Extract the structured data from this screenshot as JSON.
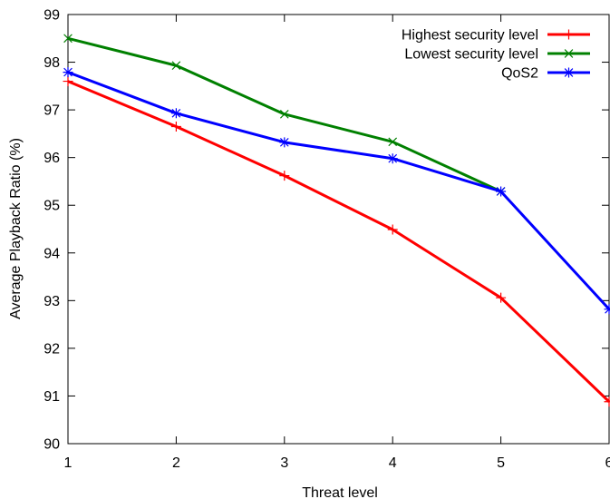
{
  "chart_data": {
    "type": "line",
    "xlabel": "Threat level",
    "ylabel": "Average Playback Ratio (%)",
    "xlim": [
      1,
      6
    ],
    "ylim": [
      90,
      99
    ],
    "xticks": [
      "1",
      "2",
      "3",
      "4",
      "5",
      "6"
    ],
    "yticks": [
      "90",
      "91",
      "92",
      "93",
      "94",
      "95",
      "96",
      "97",
      "98",
      "99"
    ],
    "grid": false,
    "legend_position": "top-right",
    "x": [
      1,
      2,
      3,
      4,
      5,
      6
    ],
    "series": [
      {
        "name": "Highest security level",
        "color": "#ff0000",
        "marker": "plus",
        "values": [
          97.6,
          96.65,
          95.62,
          94.49,
          93.06,
          90.88
        ]
      },
      {
        "name": "Lowest security level",
        "color": "#008000",
        "marker": "cross",
        "values": [
          98.5,
          97.93,
          96.91,
          96.33,
          95.29,
          null
        ]
      },
      {
        "name": "QoS2",
        "color": "#0000ff",
        "marker": "star",
        "values": [
          97.79,
          96.93,
          96.32,
          95.98,
          95.29,
          92.82
        ]
      }
    ]
  }
}
